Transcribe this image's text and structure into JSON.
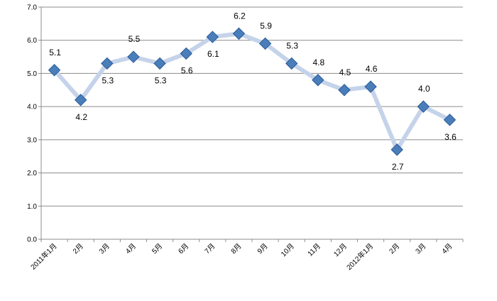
{
  "chart_data": {
    "type": "line",
    "categories": [
      "2011年1月",
      "2月",
      "3月",
      "4月",
      "5月",
      "6月",
      "7月",
      "8月",
      "9月",
      "10月",
      "11月",
      "12月",
      "2012年1月",
      "2月",
      "3月",
      "4月"
    ],
    "values": [
      5.1,
      4.2,
      5.3,
      5.5,
      5.3,
      5.6,
      6.1,
      6.2,
      5.9,
      5.3,
      4.8,
      4.5,
      4.6,
      2.7,
      4.0,
      3.6
    ],
    "data_labels": [
      "5.1",
      "4.2",
      "5.3",
      "5.5",
      "5.3",
      "5.6",
      "6.1",
      "6.2",
      "5.9",
      "5.3",
      "4.8",
      "4.5",
      "4.6",
      "2.7",
      "4.0",
      "3.6"
    ],
    "label_position": [
      "above",
      "below",
      "below",
      "above",
      "below",
      "below",
      "below",
      "above",
      "above",
      "above",
      "above",
      "above",
      "above",
      "below",
      "above",
      "below"
    ],
    "y_ticks": [
      "0.0",
      "1.0",
      "2.0",
      "3.0",
      "4.0",
      "5.0",
      "6.0",
      "7.0"
    ],
    "ylim": [
      0,
      7
    ],
    "title": "",
    "xlabel": "",
    "ylabel": "",
    "grid": true,
    "legend": "none",
    "colors": {
      "line": "#c5d3ea",
      "marker_fill": "#4a7ebb",
      "marker_edge": "#2a5a96",
      "grid": "#8c8c8c",
      "axis": "#8c8c8c"
    }
  }
}
